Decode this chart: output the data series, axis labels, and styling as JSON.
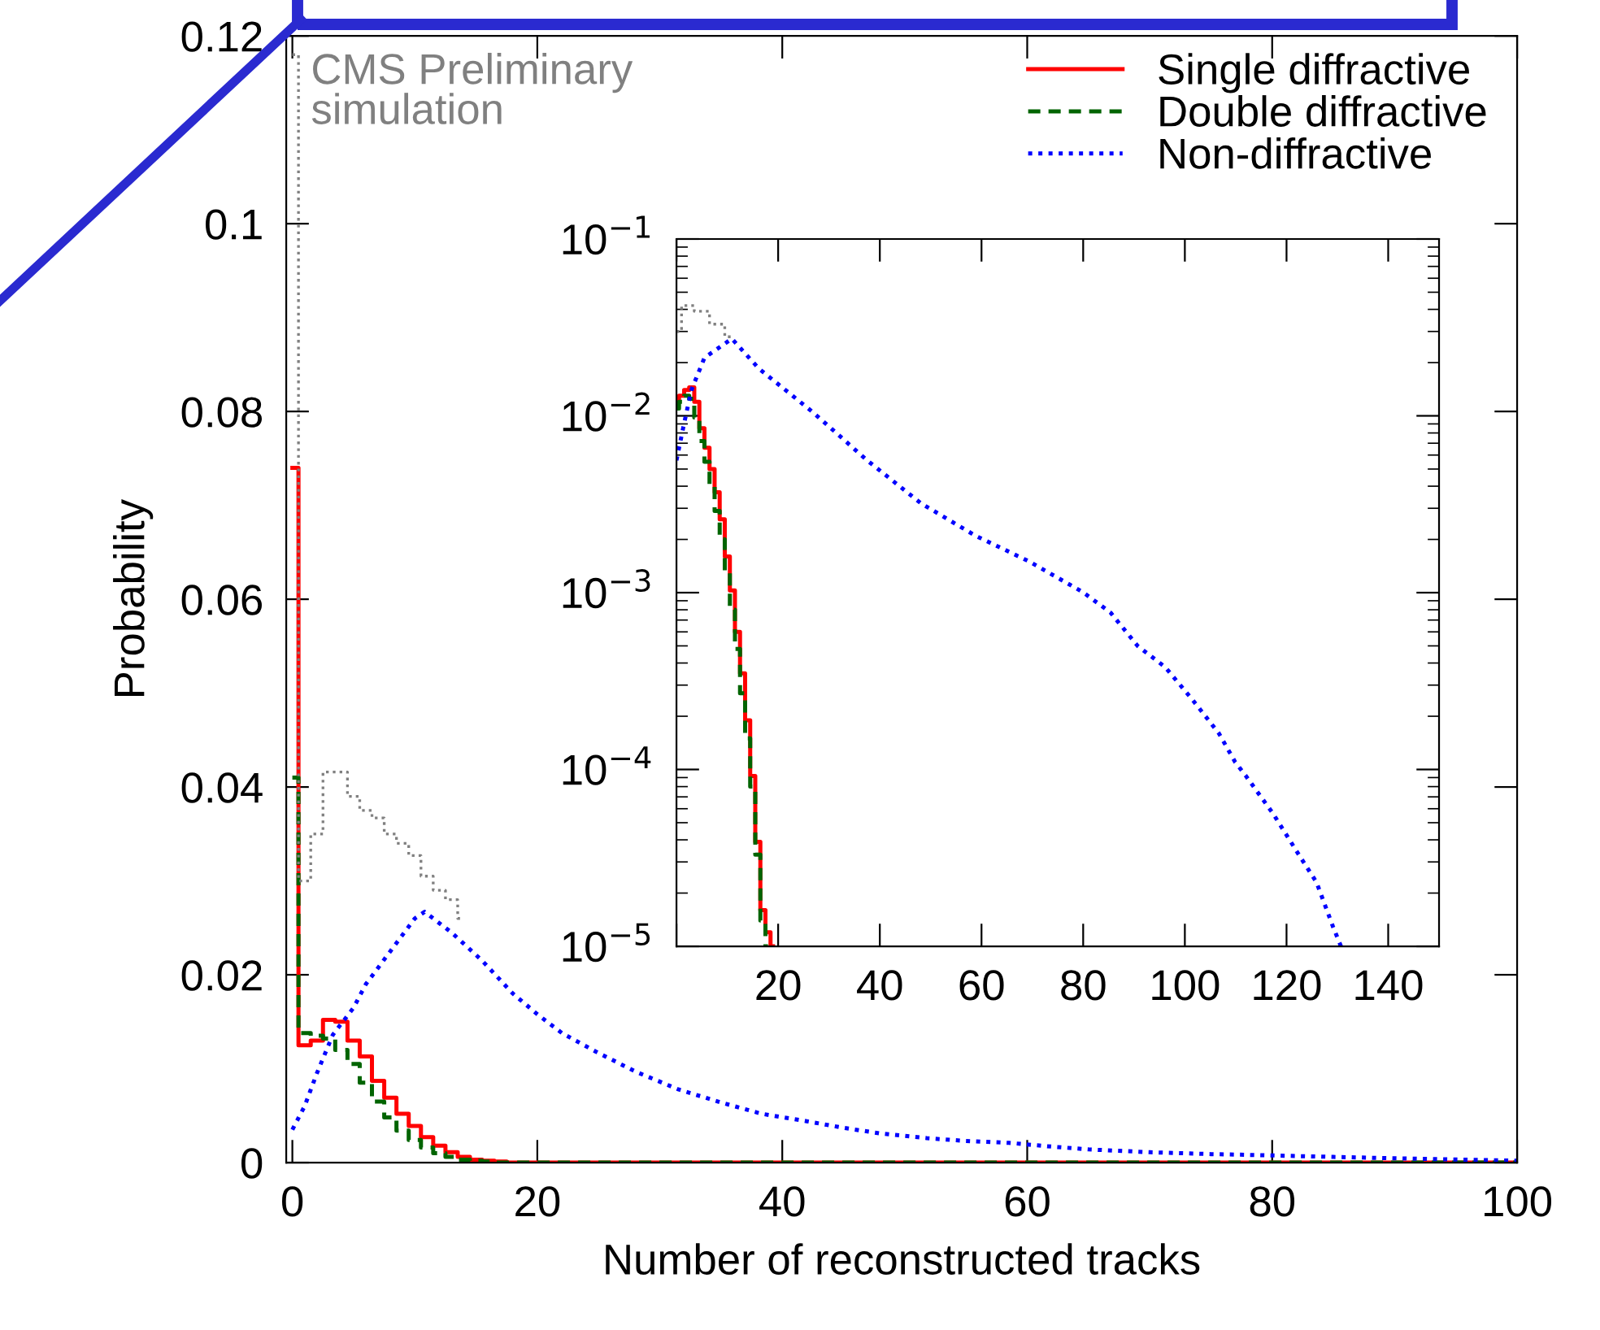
{
  "chart_data": [
    {
      "type": "step",
      "xlabel": "Number of reconstructed tracks",
      "ylabel": "Probability",
      "xlim": [
        -0.5,
        100
      ],
      "ylim": [
        0,
        0.12
      ],
      "xticks": [
        0,
        20,
        40,
        60,
        80,
        100
      ],
      "yticks": [
        0,
        0.02,
        0.04,
        0.06,
        0.08,
        0.1,
        0.12
      ],
      "legend": "top right",
      "annotations": [
        "CMS Preliminary\nsimulation"
      ],
      "series": [
        {
          "name": "Single diffractive",
          "color": "#ff0000",
          "line_style": "solid",
          "x": [
            0,
            1,
            2,
            3,
            4,
            5,
            6,
            7,
            8,
            9,
            10,
            11,
            12,
            13,
            14,
            15,
            16,
            17,
            18,
            19,
            20,
            25,
            30,
            100
          ],
          "values": [
            0.074,
            0.0125,
            0.013,
            0.0152,
            0.015,
            0.013,
            0.0113,
            0.0087,
            0.0069,
            0.0052,
            0.0039,
            0.0027,
            0.0018,
            0.0011,
            0.0006,
            0.0003,
            0.0002,
            0.0001,
            0,
            0,
            0,
            0,
            0,
            0
          ]
        },
        {
          "name": "Double diffractive",
          "color": "#006400",
          "line_style": "dashed",
          "x": [
            0,
            1,
            2,
            3,
            4,
            5,
            6,
            7,
            8,
            9,
            10,
            11,
            12,
            13,
            14,
            15,
            16,
            17,
            18,
            19,
            20,
            25,
            30,
            100
          ],
          "values": [
            0.041,
            0.0138,
            0.0135,
            0.0132,
            0.012,
            0.0105,
            0.0085,
            0.0065,
            0.0048,
            0.0034,
            0.0024,
            0.0016,
            0.001,
            0.0006,
            0.0003,
            0.0002,
            0.0001,
            0,
            0,
            0,
            0,
            0,
            0,
            0
          ]
        },
        {
          "name": "Non-diffractive",
          "type": "line",
          "color": "#0000ff",
          "line_style": "dotted",
          "x": [
            0,
            1,
            2,
            3.3,
            5,
            6,
            8,
            10,
            10.8,
            13,
            15.5,
            18,
            20,
            22,
            24.8,
            28,
            31.5,
            35,
            38.3,
            42,
            45,
            48,
            51.8,
            55,
            58.5,
            62,
            65,
            70,
            75,
            78.7,
            85,
            92,
            96,
            100
          ],
          "values": [
            0.0035,
            0.006,
            0.0095,
            0.0136,
            0.0165,
            0.019,
            0.0225,
            0.026,
            0.0267,
            0.0245,
            0.0215,
            0.018,
            0.0158,
            0.0138,
            0.0118,
            0.0097,
            0.0078,
            0.0064,
            0.0052,
            0.0044,
            0.0037,
            0.0031,
            0.0026,
            0.0023,
            0.0021,
            0.0017,
            0.0014,
            0.0011,
            0.0009,
            0.0008,
            0.0006,
            0.0004,
            0.0003,
            0.0002
          ]
        },
        {
          "color": "#808080",
          "line_style": "dotted",
          "x": [
            0,
            1,
            2,
            3,
            4,
            5,
            6,
            7,
            8,
            9,
            10,
            11,
            12,
            13,
            14
          ],
          "values": [
            0.118,
            0.03,
            0.035,
            0.0416,
            0.0416,
            0.039,
            0.0375,
            0.0367,
            0.035,
            0.034,
            0.0327,
            0.0305,
            0.029,
            0.028,
            0.026
          ]
        }
      ]
    },
    {
      "type": "step",
      "log": "y",
      "xlim": [
        0,
        150
      ],
      "ylim": [
        1e-05,
        0.1
      ],
      "xticks": [
        {
          "value": 0,
          "label": null
        },
        20,
        40,
        60,
        80,
        100,
        120,
        140
      ],
      "yticks": [
        {
          "value": 1e-05,
          "label": "10$^{−5}$"
        },
        {
          "value": 0.0001,
          "label": "10$^{−4}$"
        },
        {
          "value": 0.001,
          "label": "10$^{−3}$"
        },
        {
          "value": 0.01,
          "label": "10$^{−2}$"
        },
        {
          "value": 0.1,
          "label": "10$^{−1}$"
        }
      ],
      "series": [
        {
          "color": "#ff0000",
          "line_style": "solid",
          "x": [
            0,
            1,
            2,
            3,
            4,
            5,
            6,
            7,
            8,
            9,
            10,
            11,
            12,
            13,
            14,
            15,
            16,
            17,
            18,
            19
          ],
          "values": [
            0.012,
            0.013,
            0.014,
            0.0145,
            0.012,
            0.0085,
            0.0066,
            0.005,
            0.0037,
            0.0026,
            0.0016,
            0.00103,
            0.0006,
            0.00035,
            0.00019,
            9.2e-05,
            3.9e-05,
            1.6e-05,
            1.2e-05,
            1e-05
          ]
        },
        {
          "color": "#006400",
          "line_style": "dashed",
          "x": [
            0,
            1,
            2,
            3,
            4,
            5,
            6,
            7,
            8,
            9,
            10,
            11,
            12,
            13,
            14,
            15,
            16,
            17,
            18
          ],
          "values": [
            0.011,
            0.012,
            0.013,
            0.0125,
            0.0098,
            0.0072,
            0.0055,
            0.004,
            0.0029,
            0.002,
            0.0013,
            0.0008,
            0.00048,
            0.00027,
            0.00015,
            8e-05,
            3.3e-05,
            1.4e-05,
            1e-05
          ]
        },
        {
          "color": "#0000ff",
          "type": "line",
          "line_style": "dotted",
          "x": [
            0,
            1.3,
            2.9,
            5.5,
            10.9,
            16.2,
            26.8,
            37.5,
            48.1,
            58.8,
            69.4,
            80.1,
            85.4,
            90.7,
            96.1,
            101.4,
            106.7,
            109.9,
            112,
            117.4,
            122.7,
            125.9,
            129.1,
            130.7
          ],
          "values": [
            0.0056,
            0.0085,
            0.0139,
            0.0213,
            0.0273,
            0.0185,
            0.0105,
            0.0056,
            0.0032,
            0.0021,
            0.0015,
            0.001,
            0.00077,
            0.0005,
            0.00038,
            0.00025,
            0.00016,
            0.00011,
            9.2e-05,
            5.6e-05,
            3.2e-05,
            2.3e-05,
            1.3e-05,
            1e-05
          ]
        },
        {
          "color": "#808080",
          "line_style": "dotted",
          "x": [
            0,
            2,
            5,
            8,
            11
          ],
          "values": [
            0.03,
            0.042,
            0.039,
            0.033,
            0.028
          ]
        }
      ]
    }
  ]
}
